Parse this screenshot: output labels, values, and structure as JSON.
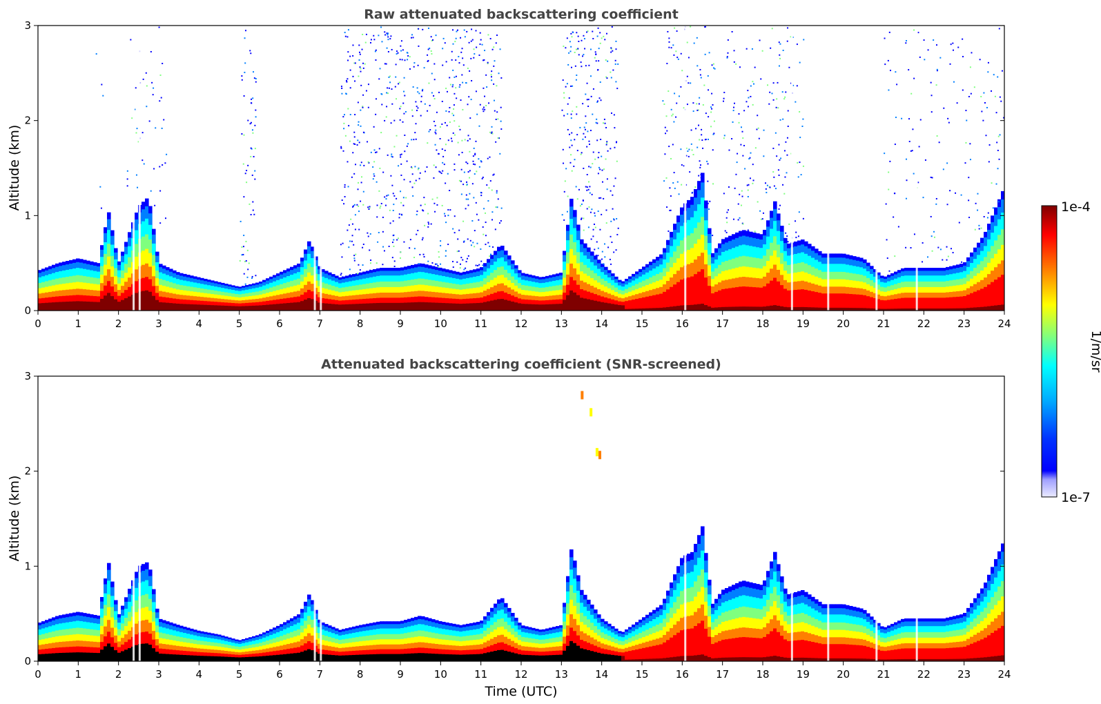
{
  "figure": {
    "xlabel": "Time (UTC)",
    "colorbar": {
      "label": "1/m/sr",
      "max_label": "1e-4",
      "min_label": "1e-7",
      "scale": "log",
      "range": [
        1e-07,
        0.0001
      ]
    }
  },
  "palette": {
    "jet": [
      "#00007f",
      "#0000ff",
      "#007fff",
      "#00ffff",
      "#7fff7f",
      "#ffff00",
      "#ff7f00",
      "#ff0000",
      "#7f0000"
    ],
    "low": [
      "#ebebff",
      "#c5c5ff",
      "#9f9fff",
      "#7979ff"
    ],
    "title_color": "#444444",
    "screened_black": "#000000"
  },
  "chart_data": [
    {
      "type": "heatmap",
      "title": "Raw attenuated backscattering coefficient",
      "xlabel": "",
      "ylabel": "Altitude (km)",
      "xlim": [
        0,
        24
      ],
      "ylim": [
        0,
        3
      ],
      "xticks": [
        "0",
        "1",
        "2",
        "3",
        "4",
        "5",
        "6",
        "7",
        "8",
        "9",
        "10",
        "11",
        "12",
        "13",
        "14",
        "15",
        "16",
        "17",
        "18",
        "19",
        "20",
        "21",
        "22",
        "23",
        "24"
      ],
      "yticks": [
        "0",
        "1",
        "2",
        "3"
      ],
      "aerosol_layer_top_km": {
        "x": [
          0,
          0.5,
          1,
          1.5,
          1.75,
          2,
          2.5,
          2.75,
          3,
          3.5,
          4,
          4.5,
          5,
          5.5,
          6,
          6.5,
          6.75,
          7,
          7.5,
          8,
          8.5,
          9,
          9.5,
          10,
          10.5,
          11,
          11.5,
          12,
          12.5,
          13,
          13.25,
          13.5,
          14,
          14.5,
          15,
          15.5,
          16,
          16.25,
          16.5,
          16.75,
          17,
          17.5,
          18,
          18.3,
          18.6,
          19,
          19.5,
          20,
          20.5,
          21,
          21.5,
          22,
          22.5,
          23,
          23.5,
          24
        ],
        "y": [
          0.42,
          0.5,
          0.55,
          0.5,
          1.05,
          0.5,
          1.1,
          1.2,
          0.5,
          0.4,
          0.35,
          0.3,
          0.25,
          0.3,
          0.4,
          0.5,
          0.75,
          0.45,
          0.35,
          0.4,
          0.45,
          0.45,
          0.5,
          0.45,
          0.4,
          0.45,
          0.7,
          0.4,
          0.35,
          0.4,
          1.2,
          0.75,
          0.5,
          0.3,
          0.45,
          0.6,
          1.1,
          1.2,
          1.45,
          0.6,
          0.75,
          0.85,
          0.8,
          1.15,
          0.7,
          0.75,
          0.6,
          0.6,
          0.55,
          0.35,
          0.45,
          0.45,
          0.45,
          0.5,
          0.8,
          1.3
        ]
      }
    },
    {
      "type": "heatmap",
      "title": "Attenuated backscattering coefficient (SNR-screened)",
      "xlabel": "Time (UTC)",
      "ylabel": "Altitude (km)",
      "xlim": [
        0,
        24
      ],
      "ylim": [
        0,
        3
      ],
      "xticks": [
        "0",
        "1",
        "2",
        "3",
        "4",
        "5",
        "6",
        "7",
        "8",
        "9",
        "10",
        "11",
        "12",
        "13",
        "14",
        "15",
        "16",
        "17",
        "18",
        "19",
        "20",
        "21",
        "22",
        "23",
        "24"
      ],
      "yticks": [
        "0",
        "1",
        "2",
        "3"
      ],
      "aerosol_layer_top_km": {
        "x": [
          0,
          0.5,
          1,
          1.5,
          1.75,
          2,
          2.5,
          2.75,
          3,
          3.5,
          4,
          4.5,
          5,
          5.5,
          6,
          6.5,
          6.75,
          7,
          7.5,
          8,
          8.5,
          9,
          9.5,
          10,
          10.5,
          11,
          11.5,
          12,
          12.5,
          13,
          13.25,
          13.5,
          14,
          14.5,
          15,
          15.5,
          16,
          16.25,
          16.5,
          16.75,
          17,
          17.5,
          18,
          18.3,
          18.6,
          19,
          19.5,
          20,
          20.5,
          21,
          21.5,
          22,
          22.5,
          23,
          23.5,
          24
        ],
        "y": [
          0.4,
          0.48,
          0.52,
          0.48,
          1.05,
          0.48,
          1.0,
          1.05,
          0.45,
          0.38,
          0.32,
          0.28,
          0.22,
          0.28,
          0.38,
          0.5,
          0.72,
          0.42,
          0.33,
          0.38,
          0.42,
          0.42,
          0.48,
          0.42,
          0.38,
          0.42,
          0.68,
          0.38,
          0.33,
          0.38,
          1.2,
          0.75,
          0.45,
          0.3,
          0.45,
          0.6,
          1.1,
          1.15,
          1.42,
          0.6,
          0.75,
          0.85,
          0.8,
          1.15,
          0.7,
          0.75,
          0.6,
          0.6,
          0.55,
          0.35,
          0.45,
          0.45,
          0.45,
          0.5,
          0.8,
          1.28
        ]
      }
    }
  ]
}
